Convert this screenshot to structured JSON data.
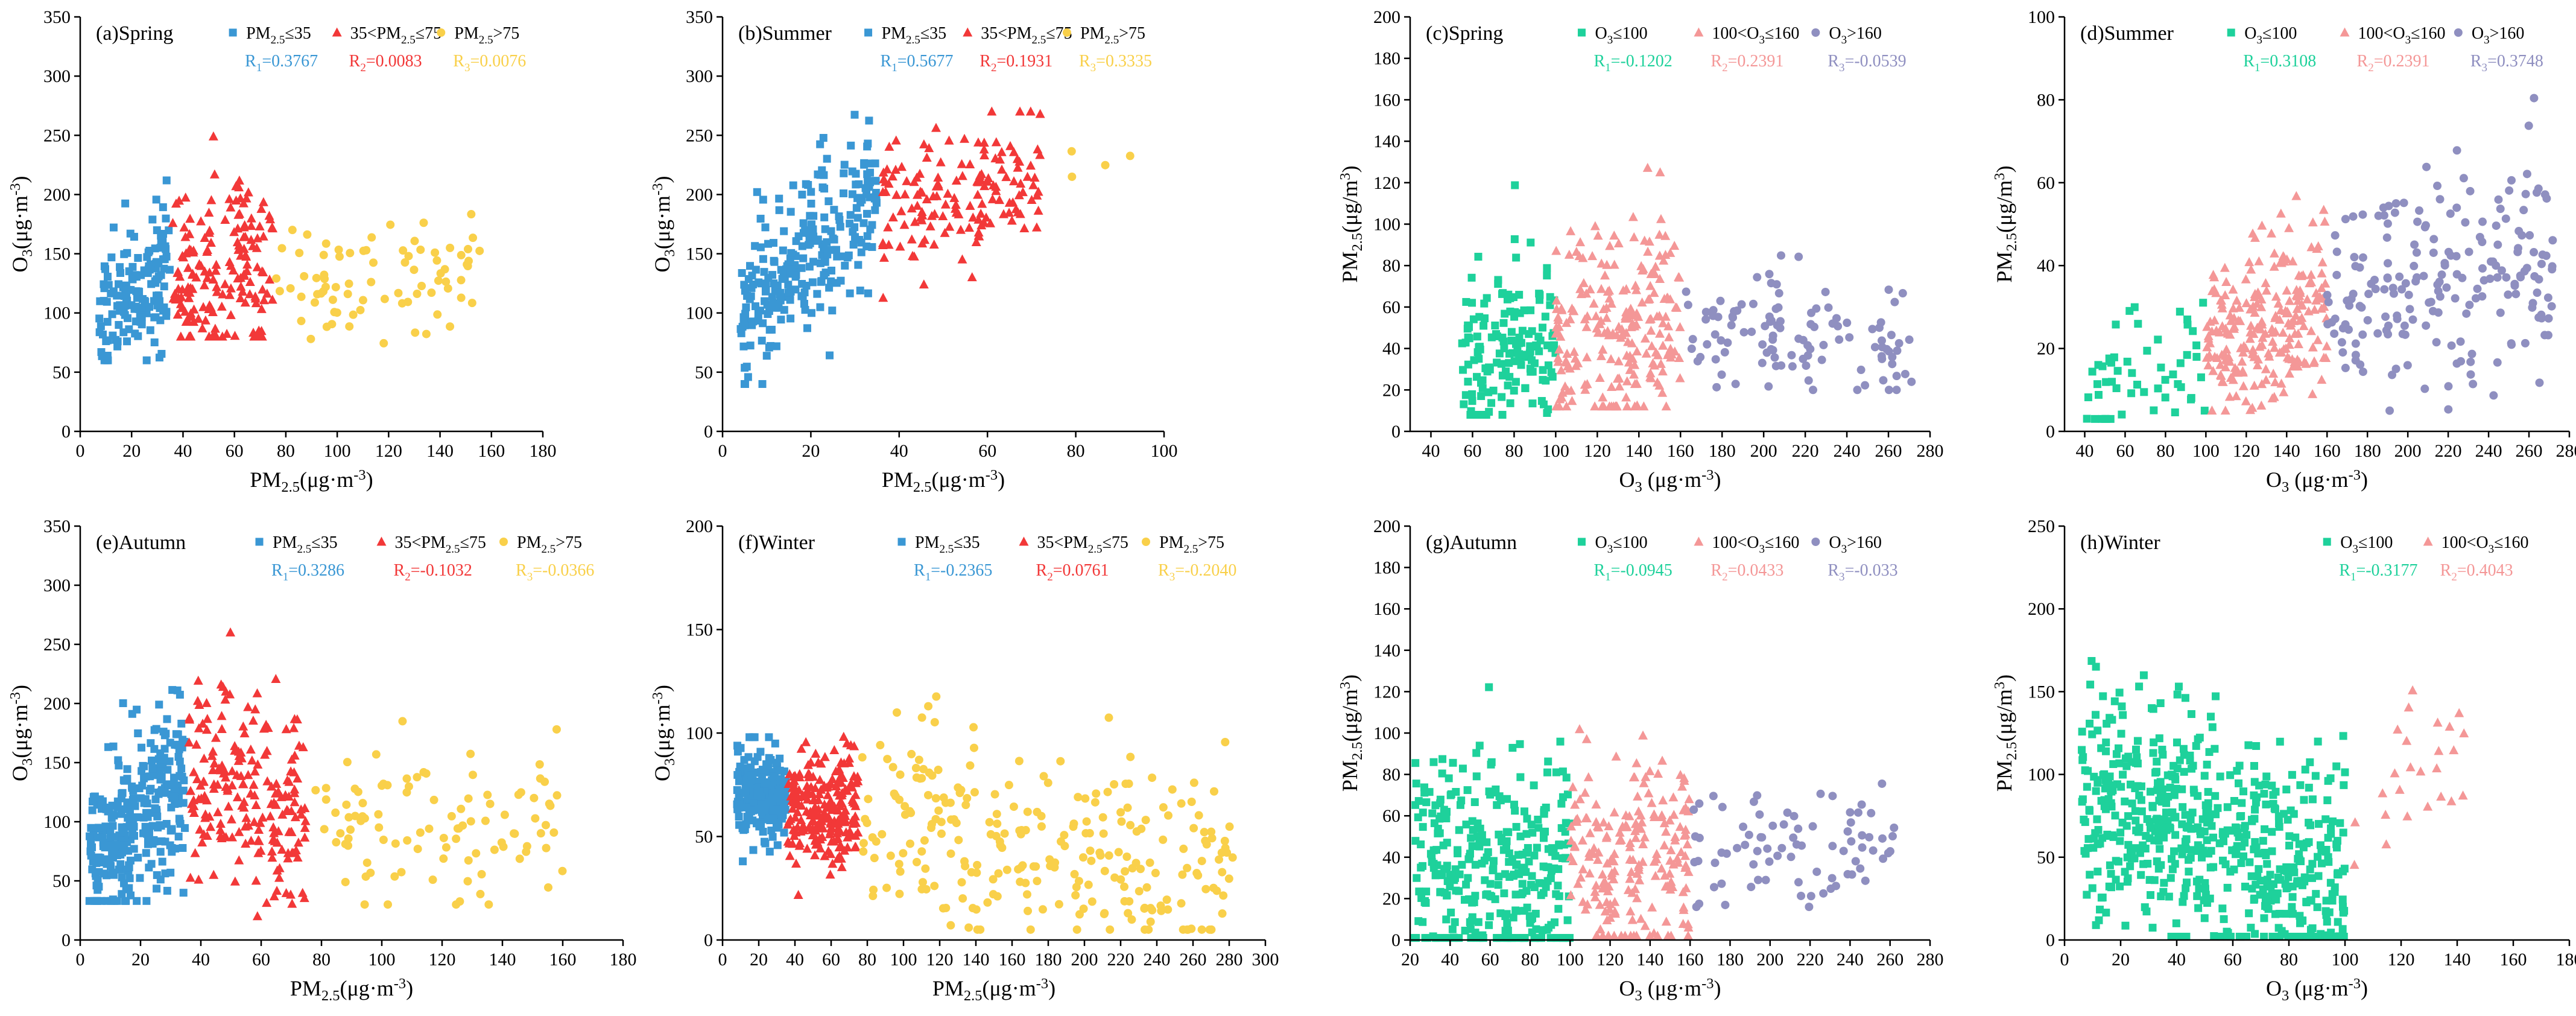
{
  "figure": {
    "background": "#ffffff"
  },
  "colors": {
    "pm_low": "#3a97d4",
    "pm_mid": "#f23838",
    "pm_high": "#f9d04a",
    "o3_low": "#1ed19b",
    "o3_mid": "#f49797",
    "o3_high": "#8f8fc0"
  },
  "chart_data": [
    {
      "id": "a",
      "type": "scatter",
      "title": "(a)Spring",
      "xlabel": "PM2.5(μg·m⁻³)",
      "ylabel": "O3(μg·m⁻³)",
      "xlim": [
        0,
        180
      ],
      "ylim": [
        0,
        350
      ],
      "xticks": [
        0,
        20,
        40,
        60,
        80,
        100,
        120,
        140,
        160,
        180
      ],
      "yticks": [
        0,
        50,
        100,
        150,
        200,
        250,
        300,
        350
      ],
      "legend": {
        "position": "top",
        "items": [
          {
            "label": "PM2.5≤35",
            "marker": "square",
            "color_key": "pm_low",
            "r_text": "R1=0.3767"
          },
          {
            "label": "35<PM2.5≤75",
            "marker": "triangle",
            "color_key": "pm_mid",
            "r_text": "R2=0.0083"
          },
          {
            "label": "PM2.5>75",
            "marker": "circle",
            "color_key": "pm_high",
            "r_text": "R3=0.0076"
          }
        ]
      },
      "series": [
        {
          "name": "PM2.5≤35",
          "marker": "square",
          "color_key": "pm_low",
          "n": 150,
          "x_range": [
            7,
            35
          ],
          "y_mean": 115,
          "y_sd": 28,
          "slope": 2.0,
          "x_ref": 21,
          "y_clip": [
            60,
            235
          ]
        },
        {
          "name": "35<PM2.5≤75",
          "marker": "triangle",
          "color_key": "pm_mid",
          "n": 170,
          "x_range": [
            36,
            75
          ],
          "y_mean": 140,
          "y_sd": 38,
          "slope": 0.0,
          "x_ref": 55,
          "y_clip": [
            80,
            270
          ]
        },
        {
          "name": "PM2.5>75",
          "marker": "circle",
          "color_key": "pm_high",
          "n": 80,
          "x_range": [
            76,
            156
          ],
          "y_mean": 130,
          "y_sd": 27,
          "slope": 0.0,
          "x_ref": 110,
          "y_clip": [
            70,
            190
          ]
        }
      ]
    },
    {
      "id": "b",
      "type": "scatter",
      "title": "(b)Summer",
      "xlabel": "PM2.5(μg·m⁻³)",
      "ylabel": "O3(μg·m⁻³)",
      "xlim": [
        0,
        100
      ],
      "ylim": [
        0,
        350
      ],
      "xticks": [
        0,
        20,
        40,
        60,
        80,
        100
      ],
      "yticks": [
        0,
        50,
        100,
        150,
        200,
        250,
        300,
        350
      ],
      "legend": {
        "position": "top",
        "items": [
          {
            "label": "PM2.5≤35",
            "marker": "square",
            "color_key": "pm_low",
            "r_text": "R1=0.5677"
          },
          {
            "label": "35<PM2.5≤75",
            "marker": "triangle",
            "color_key": "pm_mid",
            "r_text": "R2=0.1931"
          },
          {
            "label": "PM2.5>75",
            "marker": "circle",
            "color_key": "pm_high",
            "r_text": "R3=0.3335"
          }
        ]
      },
      "series": [
        {
          "name": "PM2.5≤35",
          "marker": "square",
          "color_key": "pm_low",
          "n": 260,
          "x_range": [
            4,
            35
          ],
          "y_mean": 150,
          "y_sd": 32,
          "slope": 3.8,
          "x_ref": 20,
          "y_clip": [
            40,
            290
          ]
        },
        {
          "name": "35<PM2.5≤75",
          "marker": "triangle",
          "color_key": "pm_mid",
          "n": 150,
          "x_range": [
            36,
            72
          ],
          "y_mean": 195,
          "y_sd": 30,
          "slope": 0.8,
          "x_ref": 48,
          "y_clip": [
            90,
            270
          ]
        },
        {
          "name": "PM2.5>75",
          "marker": "circle",
          "color_key": "pm_high",
          "n": 4,
          "x_range": [
            77,
            94
          ],
          "y_mean": 240,
          "y_sd": 15,
          "slope": 0.0,
          "x_ref": 85,
          "y_clip": [
            215,
            258
          ]
        }
      ]
    },
    {
      "id": "c",
      "type": "scatter",
      "title": "(c)Spring",
      "xlabel": "O3 (μg·m⁻³)",
      "ylabel": "PM2.5(μg/m³)",
      "xlim": [
        30,
        280
      ],
      "ylim": [
        0,
        200
      ],
      "xticks": [
        40,
        60,
        80,
        100,
        120,
        140,
        160,
        180,
        200,
        220,
        240,
        260,
        280
      ],
      "yticks": [
        0,
        20,
        40,
        60,
        80,
        100,
        120,
        140,
        160,
        180,
        200
      ],
      "legend": {
        "position": "top",
        "items": [
          {
            "label": "O3≤100",
            "marker": "square",
            "color_key": "o3_low",
            "r_text": "R1=-0.1202"
          },
          {
            "label": "100<O3≤160",
            "marker": "triangle",
            "color_key": "o3_mid",
            "r_text": "R2=0.2391"
          },
          {
            "label": "O3>160",
            "marker": "circle",
            "color_key": "o3_high",
            "r_text": "R3=-0.0539"
          }
        ]
      },
      "series": [
        {
          "name": "O3≤100",
          "marker": "square",
          "color_key": "o3_low",
          "n": 150,
          "x_range": [
            55,
            100
          ],
          "y_mean": 38,
          "y_sd": 22,
          "slope": 0.0,
          "x_ref": 85,
          "y_clip": [
            8,
            150
          ]
        },
        {
          "name": "100<O3≤160",
          "marker": "triangle",
          "color_key": "o3_mid",
          "n": 220,
          "x_range": [
            100,
            160
          ],
          "y_mean": 50,
          "y_sd": 25,
          "slope": 0.3,
          "x_ref": 128,
          "y_clip": [
            12,
            156
          ]
        },
        {
          "name": "O3>160",
          "marker": "circle",
          "color_key": "o3_high",
          "n": 110,
          "x_range": [
            160,
            272
          ],
          "y_mean": 45,
          "y_sd": 15,
          "slope": -0.05,
          "x_ref": 190,
          "y_clip": [
            20,
            135
          ]
        }
      ]
    },
    {
      "id": "d",
      "type": "scatter",
      "title": "(d)Summer",
      "xlabel": "O3 (μg·m⁻³)",
      "ylabel": "PM2.5(μg/m³)",
      "xlim": [
        30,
        280
      ],
      "ylim": [
        0,
        100
      ],
      "xticks": [
        40,
        60,
        80,
        100,
        120,
        140,
        160,
        180,
        200,
        220,
        240,
        260,
        280
      ],
      "yticks": [
        0,
        20,
        40,
        60,
        80,
        100
      ],
      "legend": {
        "position": "top",
        "items": [
          {
            "label": "O3≤100",
            "marker": "square",
            "color_key": "o3_low",
            "r_text": "R1=0.3108"
          },
          {
            "label": "100<O3≤160",
            "marker": "triangle",
            "color_key": "o3_mid",
            "r_text": "R2=0.2391"
          },
          {
            "label": "O3>160",
            "marker": "circle",
            "color_key": "o3_high",
            "r_text": "R3=0.3748"
          }
        ]
      },
      "series": [
        {
          "name": "O3≤100",
          "marker": "square",
          "color_key": "o3_low",
          "n": 55,
          "x_range": [
            40,
            100
          ],
          "y_mean": 14,
          "y_sd": 8,
          "slope": 0.15,
          "x_ref": 75,
          "y_clip": [
            3,
            47
          ]
        },
        {
          "name": "100<O3≤160",
          "marker": "triangle",
          "color_key": "o3_mid",
          "n": 240,
          "x_range": [
            100,
            160
          ],
          "y_mean": 25,
          "y_sd": 10,
          "slope": 0.15,
          "x_ref": 130,
          "y_clip": [
            5,
            59
          ]
        },
        {
          "name": "O3>160",
          "marker": "circle",
          "color_key": "o3_high",
          "n": 200,
          "x_range": [
            160,
            272
          ],
          "y_mean": 35,
          "y_sd": 12,
          "slope": 0.1,
          "x_ref": 205,
          "y_clip": [
            5,
            94
          ]
        }
      ]
    },
    {
      "id": "e",
      "type": "scatter",
      "title": "(e)Autumn",
      "xlabel": "PM2.5(μg·m⁻³)",
      "ylabel": "O3(μg·m⁻³)",
      "xlim": [
        0,
        180
      ],
      "ylim": [
        0,
        350
      ],
      "xticks": [
        0,
        20,
        40,
        60,
        80,
        100,
        120,
        140,
        160,
        180
      ],
      "yticks": [
        0,
        50,
        100,
        150,
        200,
        250,
        300,
        350
      ],
      "legend": {
        "position": "top",
        "items": [
          {
            "label": "PM2.5≤35",
            "marker": "square",
            "color_key": "pm_low",
            "r_text": "R1=0.3286"
          },
          {
            "label": "35<PM2.5≤75",
            "marker": "triangle",
            "color_key": "pm_mid",
            "r_text": "R2=-0.1032"
          },
          {
            "label": "PM2.5>75",
            "marker": "circle",
            "color_key": "pm_high",
            "r_text": "R3=-0.0366"
          }
        ]
      },
      "series": [
        {
          "name": "PM2.5≤35",
          "marker": "square",
          "color_key": "pm_low",
          "n": 300,
          "x_range": [
            3,
            35
          ],
          "y_mean": 105,
          "y_sd": 35,
          "slope": 2.0,
          "x_ref": 20,
          "y_clip": [
            33,
            238
          ]
        },
        {
          "name": "35<PM2.5≤75",
          "marker": "triangle",
          "color_key": "pm_mid",
          "n": 200,
          "x_range": [
            36,
            75
          ],
          "y_mean": 120,
          "y_sd": 45,
          "slope": -1.0,
          "x_ref": 55,
          "y_clip": [
            20,
            260
          ]
        },
        {
          "name": "PM2.5>75",
          "marker": "circle",
          "color_key": "pm_high",
          "n": 100,
          "x_range": [
            76,
            162
          ],
          "y_mean": 105,
          "y_sd": 35,
          "slope": -0.2,
          "x_ref": 100,
          "y_clip": [
            30,
            185
          ]
        }
      ]
    },
    {
      "id": "f",
      "type": "scatter",
      "title": "(f)Winter",
      "xlabel": "PM2.5(μg·m⁻³)",
      "ylabel": "O3(μg·m⁻³)",
      "xlim": [
        0,
        300
      ],
      "ylim": [
        0,
        200
      ],
      "xticks": [
        0,
        20,
        40,
        60,
        80,
        100,
        120,
        140,
        160,
        180,
        200,
        220,
        240,
        260,
        280,
        300
      ],
      "yticks": [
        0,
        50,
        100,
        150,
        200
      ],
      "legend": {
        "position": "top",
        "items": [
          {
            "label": "PM2.5≤35",
            "marker": "square",
            "color_key": "pm_low",
            "r_text": "R1=-0.2365"
          },
          {
            "label": "35<PM2.5≤75",
            "marker": "triangle",
            "color_key": "pm_mid",
            "r_text": "R2=0.0761"
          },
          {
            "label": "PM2.5>75",
            "marker": "circle",
            "color_key": "pm_high",
            "r_text": "R3=-0.2040"
          }
        ]
      },
      "series": [
        {
          "name": "PM2.5≤35",
          "marker": "square",
          "color_key": "pm_low",
          "n": 220,
          "x_range": [
            8,
            35
          ],
          "y_mean": 70,
          "y_sd": 11,
          "slope": -0.3,
          "x_ref": 20,
          "y_clip": [
            38,
            98
          ]
        },
        {
          "name": "35<PM2.5≤75",
          "marker": "triangle",
          "color_key": "pm_mid",
          "n": 220,
          "x_range": [
            36,
            75
          ],
          "y_mean": 62,
          "y_sd": 15,
          "slope": 0.1,
          "x_ref": 55,
          "y_clip": [
            14,
            115
          ]
        },
        {
          "name": "PM2.5>75",
          "marker": "circle",
          "color_key": "pm_high",
          "n": 260,
          "x_range": [
            76,
            282
          ],
          "y_mean": 55,
          "y_sd": 26,
          "slope": -0.15,
          "x_ref": 130,
          "y_clip": [
            5,
            143
          ]
        }
      ]
    },
    {
      "id": "g",
      "type": "scatter",
      "title": "(g)Autumn",
      "xlabel": "O3 (μg·m⁻³)",
      "ylabel": "PM2.5(μg/m³)",
      "xlim": [
        20,
        280
      ],
      "ylim": [
        0,
        200
      ],
      "xticks": [
        20,
        40,
        60,
        80,
        100,
        120,
        140,
        160,
        180,
        200,
        220,
        240,
        260,
        280
      ],
      "yticks": [
        0,
        20,
        40,
        60,
        80,
        100,
        120,
        140,
        160,
        180,
        200
      ],
      "legend": {
        "position": "top",
        "items": [
          {
            "label": "O3≤100",
            "marker": "square",
            "color_key": "o3_low",
            "r_text": "R1=-0.0945"
          },
          {
            "label": "100<O3≤160",
            "marker": "triangle",
            "color_key": "o3_mid",
            "r_text": "R2=0.0433"
          },
          {
            "label": "O3>160",
            "marker": "circle",
            "color_key": "o3_high",
            "r_text": "R3=-0.033"
          }
        ]
      },
      "series": [
        {
          "name": "O3≤100",
          "marker": "square",
          "color_key": "o3_low",
          "n": 330,
          "x_range": [
            22,
            100
          ],
          "y_mean": 32,
          "y_sd": 28,
          "slope": -0.1,
          "x_ref": 70,
          "y_clip": [
            1,
            162
          ]
        },
        {
          "name": "100<O3≤160",
          "marker": "triangle",
          "color_key": "o3_mid",
          "n": 200,
          "x_range": [
            100,
            160
          ],
          "y_mean": 38,
          "y_sd": 26,
          "slope": 0.05,
          "x_ref": 128,
          "y_clip": [
            2,
            152
          ]
        },
        {
          "name": "O3>160",
          "marker": "circle",
          "color_key": "o3_high",
          "n": 80,
          "x_range": [
            160,
            262
          ],
          "y_mean": 45,
          "y_sd": 16,
          "slope": -0.02,
          "x_ref": 195,
          "y_clip": [
            16,
            120
          ]
        }
      ]
    },
    {
      "id": "h",
      "type": "scatter",
      "title": "(h)Winter",
      "xlabel": "O3 (μg·m⁻³)",
      "ylabel": "PM2.5(μg/m³)",
      "xlim": [
        0,
        180
      ],
      "ylim": [
        0,
        250
      ],
      "xticks": [
        0,
        20,
        40,
        60,
        80,
        100,
        120,
        140,
        160,
        180
      ],
      "yticks": [
        0,
        50,
        100,
        150,
        200,
        250
      ],
      "legend": {
        "position": "top",
        "items": [
          {
            "label": "O3≤100",
            "marker": "square",
            "color_key": "o3_low",
            "r_text": "R1=-0.3177"
          },
          {
            "label": "100<O3≤160",
            "marker": "triangle",
            "color_key": "o3_mid",
            "r_text": "R2=0.4043"
          }
        ]
      },
      "series": [
        {
          "name": "O3≤100",
          "marker": "square",
          "color_key": "o3_low",
          "n": 600,
          "x_range": [
            6,
            100
          ],
          "y_mean": 55,
          "y_sd": 35,
          "slope": -0.6,
          "x_ref": 60,
          "y_clip": [
            2,
            282
          ]
        },
        {
          "name": "100<O3≤160",
          "marker": "triangle",
          "color_key": "o3_mid",
          "n": 25,
          "x_range": [
            100,
            144
          ],
          "y_mean": 95,
          "y_sd": 30,
          "slope": 0.8,
          "x_ref": 115,
          "y_clip": [
            35,
            152
          ]
        }
      ]
    }
  ]
}
